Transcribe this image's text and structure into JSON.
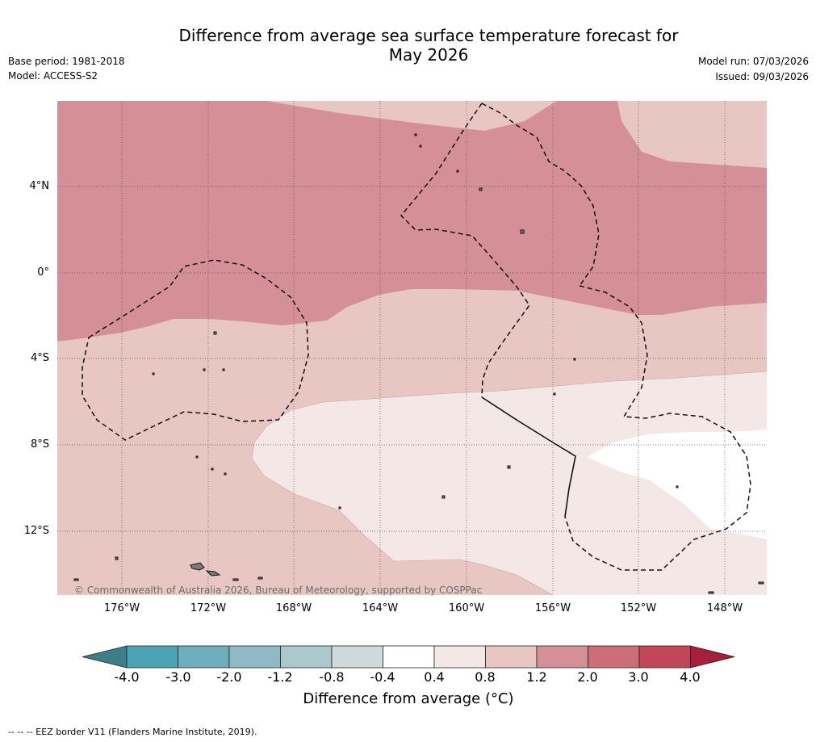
{
  "title": {
    "line1": "Difference from average sea surface temperature forecast for",
    "line2": "May 2026"
  },
  "meta": {
    "base_period": "Base period: 1981-2018",
    "model": "Model: ACCESS-S2",
    "model_run": "Model run: 07/03/2026",
    "issued": "Issued: 09/03/2026"
  },
  "map": {
    "lat_ticks": [
      "4°N",
      "0°",
      "4°S",
      "8°S",
      "12°S"
    ],
    "lon_ticks": [
      "176°W",
      "172°W",
      "168°W",
      "164°W",
      "160°W",
      "156°W",
      "152°W",
      "148°W"
    ],
    "copyright": "© Commonwealth of Australia 2026, Bureau of Meteorology, supported by COSPPac",
    "colors": {
      "band_2_0": "#d58f96",
      "band_0_8": "#e8c6c2",
      "band_0_4": "#f4e8e6",
      "band_neutral": "#ffffff",
      "eez_line": "#111111",
      "land": "#8a8a8a"
    }
  },
  "colorbar": {
    "labels": [
      "-4.0",
      "-3.0",
      "-2.0",
      "-1.2",
      "-0.8",
      "-0.4",
      "0.4",
      "0.8",
      "1.2",
      "2.0",
      "3.0",
      "4.0"
    ],
    "colors": [
      "#3d7f86",
      "#4aa3b3",
      "#6fafbd",
      "#8fbac5",
      "#abc9cd",
      "#cdd9da",
      "#ffffff",
      "#f4e8e6",
      "#e8c6c2",
      "#d58f96",
      "#cd6d78",
      "#c14758",
      "#a71f3b"
    ],
    "title": "Difference from average (°C)"
  },
  "footer": "--  --  -- EEZ border V11 (Flanders Marine Institute, 2019)."
}
